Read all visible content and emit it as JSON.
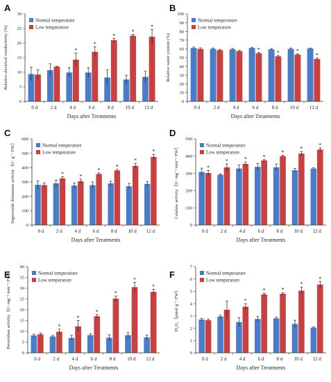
{
  "colors": {
    "normal": "#4a7dc9",
    "low": "#c84040",
    "axis": "#333333"
  },
  "chart_data": [
    {
      "type": "bar",
      "panel_label": "A",
      "categories": [
        "0 d",
        "2 d",
        "4 d",
        "6 d",
        "8 d",
        "10 d",
        "12 d"
      ],
      "xlabel": "Days after Treatments",
      "ylabel": "Relative electrical conductivity (%)",
      "ylim": [
        0,
        30
      ],
      "yticks": [
        "0",
        "5",
        "10",
        "15",
        "20",
        "25",
        "30"
      ],
      "legend": "top-left",
      "series": [
        {
          "name": "Normal temperature",
          "values": [
            9.4,
            10.7,
            9.9,
            9.9,
            8.2,
            7.5,
            8.4
          ],
          "errors": [
            2.3,
            2.2,
            1.7,
            1.7,
            2.6,
            1.5,
            1.9
          ]
        },
        {
          "name": "Low temperature",
          "values": [
            9.2,
            11.9,
            14.3,
            17.0,
            21.0,
            22.5,
            22.2
          ],
          "errors": [
            1.7,
            0.2,
            2.2,
            1.7,
            0.6,
            0.5,
            2.5
          ]
        }
      ],
      "significance": [
        "",
        "",
        "*",
        "*",
        "*",
        "*",
        "*"
      ]
    },
    {
      "type": "bar",
      "panel_label": "B",
      "categories": [
        "0 d",
        "2 d",
        "4 d",
        "6 d",
        "8 d",
        "10 d",
        "12 d"
      ],
      "xlabel": "Days after Treatments",
      "ylabel": "Relative water content (%)",
      "ylim": [
        0,
        100
      ],
      "yticks": [
        "0",
        "10",
        "20",
        "30",
        "40",
        "50",
        "60",
        "70",
        "80",
        "90",
        "100"
      ],
      "legend": "top-left",
      "series": [
        {
          "name": "Normal temperature",
          "values": [
            61,
            60,
            59.5,
            61,
            59.5,
            60,
            60.5
          ],
          "errors": [
            1.0,
            1.0,
            1.0,
            0.8,
            0.8,
            1.0,
            0.5
          ]
        },
        {
          "name": "Low temperature",
          "values": [
            60,
            58.5,
            57.5,
            55,
            51.5,
            53.5,
            48.5
          ],
          "errors": [
            1.2,
            0.8,
            0.8,
            1.0,
            1.0,
            1.0,
            1.0
          ]
        }
      ],
      "significance": [
        "",
        "",
        "",
        "*",
        "*",
        "*",
        "*"
      ]
    },
    {
      "type": "bar",
      "panel_label": "C",
      "categories": [
        "0 d",
        "2 d",
        "4 d",
        "6 d",
        "8 d",
        "10 d",
        "12 d"
      ],
      "xlabel": "Days after Treatments",
      "ylabel": "Superoxide dismutase activity（U· g⁻¹ FW）",
      "ylim": [
        0,
        600
      ],
      "yticks": [
        "0",
        "100",
        "200",
        "300",
        "400",
        "500",
        "600"
      ],
      "legend": "top-left",
      "series": [
        {
          "name": "Normal temperature",
          "values": [
            280,
            290,
            275,
            278,
            290,
            270,
            287
          ],
          "errors": [
            28,
            22,
            18,
            22,
            15,
            20,
            15
          ]
        },
        {
          "name": "Low temperature",
          "values": [
            278,
            325,
            305,
            355,
            380,
            412,
            475
          ],
          "errors": [
            14,
            12,
            15,
            8,
            8,
            18,
            18
          ]
        }
      ],
      "significance": [
        "",
        "*",
        "*",
        "*",
        "*",
        "*",
        "*"
      ]
    },
    {
      "type": "bar",
      "panel_label": "D",
      "categories": [
        "0 d",
        "2 d",
        "4 d",
        "6 d",
        "8 d",
        "10 d",
        "12 d"
      ],
      "xlabel": "Days after Treatments",
      "ylabel": "Catalase activity（U· mg⁻¹ min⁻¹ FW）",
      "ylim": [
        0,
        500
      ],
      "yticks": [
        "0",
        "100",
        "200",
        "300",
        "400",
        "500"
      ],
      "legend": "top-left",
      "series": [
        {
          "name": "Normal temperature",
          "values": [
            308,
            292,
            328,
            338,
            335,
            318,
            328
          ],
          "errors": [
            22,
            5,
            20,
            20,
            20,
            10,
            4
          ]
        },
        {
          "name": "Low temperature",
          "values": [
            302,
            335,
            355,
            375,
            400,
            415,
            438
          ],
          "errors": [
            15,
            20,
            12,
            5,
            5,
            12,
            10
          ]
        }
      ],
      "significance": [
        "*",
        "*",
        "*",
        "*",
        "*",
        "*",
        "*"
      ]
    },
    {
      "type": "bar",
      "panel_label": "E",
      "categories": [
        "0 d",
        "2 d",
        "4 d",
        "6 d",
        "8 d",
        "10 d",
        "12 d"
      ],
      "xlabel": "Days after Treatments",
      "ylabel": "Peroxidase activity（U· mg⁻¹ min⁻¹ FW）",
      "ylim": [
        0,
        40
      ],
      "yticks": [
        "0",
        "5",
        "10",
        "15",
        "20",
        "25",
        "30",
        "35",
        "40"
      ],
      "legend": "top-left",
      "series": [
        {
          "name": "Normal temperature",
          "values": [
            8.1,
            7.6,
            6.9,
            8.2,
            7.0,
            8.2,
            7.2
          ],
          "errors": [
            0.6,
            0.5,
            1.2,
            0.6,
            1.4,
            1.2,
            1.0
          ]
        },
        {
          "name": "Low temperature",
          "values": [
            8.6,
            9.8,
            12.3,
            17.0,
            25.2,
            30.5,
            28.3
          ],
          "errors": [
            0.6,
            1.2,
            2.7,
            0.8,
            1.2,
            2.2,
            1.2
          ]
        }
      ],
      "significance": [
        "",
        "*",
        "*",
        "*",
        "*",
        "*",
        "*"
      ]
    },
    {
      "type": "bar",
      "panel_label": "F",
      "categories": [
        "0 d",
        "2 d",
        "4 d",
        "6 d",
        "8 d",
        "10 d",
        "12 d"
      ],
      "xlabel": "Days after Treatments",
      "ylabel": "H₂O₂（μmol·g⁻¹ FW）",
      "ylim": [
        0,
        7
      ],
      "yticks": [
        "0",
        "1",
        "2",
        "3",
        "4",
        "5",
        "6",
        "7"
      ],
      "legend": "top-left",
      "series": [
        {
          "name": "Normal temperature",
          "values": [
            2.7,
            2.95,
            2.5,
            2.75,
            2.8,
            2.35,
            2.05
          ],
          "errors": [
            0.1,
            0.1,
            0.35,
            0.2,
            0.1,
            0.3,
            0.05
          ]
        },
        {
          "name": "Low temperature",
          "values": [
            2.65,
            3.5,
            3.75,
            4.75,
            4.8,
            5.05,
            5.55
          ],
          "errors": [
            0.1,
            0.7,
            0.25,
            0.1,
            0.1,
            0.3,
            0.25
          ]
        }
      ],
      "significance": [
        "",
        "",
        "*",
        "*",
        "*",
        "*",
        "*"
      ]
    }
  ]
}
